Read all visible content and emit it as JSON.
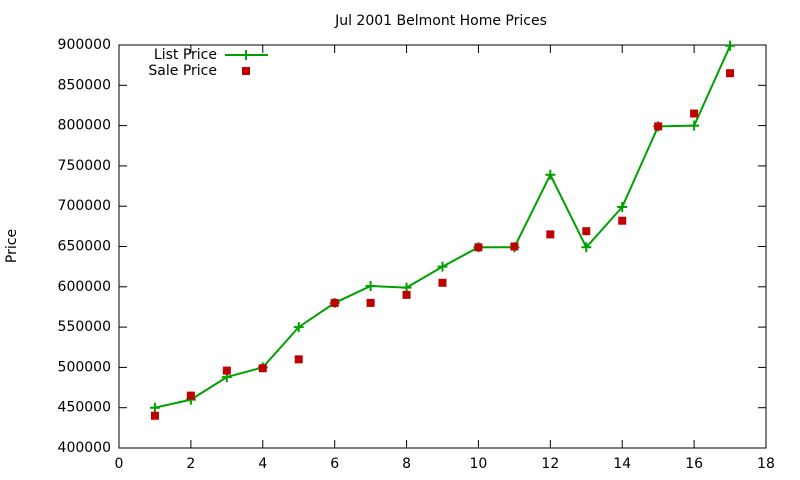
{
  "chart_data": {
    "type": "line",
    "title": "Jul 2001 Belmont Home Prices",
    "y_label": "Price",
    "x": [
      1,
      2,
      3,
      4,
      5,
      6,
      7,
      8,
      9,
      10,
      11,
      12,
      13,
      14,
      15,
      16,
      17
    ],
    "series": [
      {
        "name": "List Price",
        "color": "#00a000",
        "style": "linespoints",
        "values": [
          450000,
          460000,
          488000,
          500000,
          550000,
          580000,
          601000,
          599000,
          625000,
          649000,
          649000,
          739000,
          649000,
          699000,
          799000,
          800000,
          899000
        ]
      },
      {
        "name": "Sale Price",
        "color": "#c00000",
        "style": "points",
        "values": [
          440000,
          465000,
          496000,
          499000,
          510000,
          580000,
          580000,
          590000,
          605000,
          649000,
          650000,
          665000,
          669000,
          682000,
          799000,
          815000,
          865000
        ]
      }
    ],
    "xlim": [
      0,
      18
    ],
    "xticks": [
      0,
      2,
      4,
      6,
      8,
      10,
      12,
      14,
      16,
      18
    ],
    "ylim": [
      400000,
      900000
    ],
    "yticks": [
      400000,
      450000,
      500000,
      550000,
      600000,
      650000,
      700000,
      750000,
      800000,
      850000,
      900000
    ],
    "legend": "top-left",
    "grid": false
  }
}
